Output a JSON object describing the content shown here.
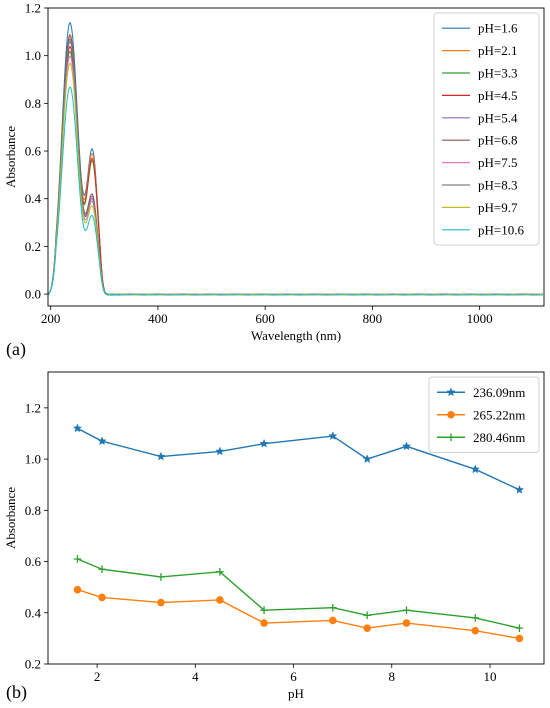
{
  "chart_data": [
    {
      "panel_label": "(a)",
      "type": "line",
      "xlabel": "Wavelength (nm)",
      "ylabel": "Absorbance",
      "xlim": [
        195,
        1120
      ],
      "ylim": [
        -0.05,
        1.2
      ],
      "xticks": [
        200,
        400,
        600,
        800,
        1000
      ],
      "yticks": [
        0.0,
        0.2,
        0.4,
        0.6,
        0.8,
        1.0,
        1.2
      ],
      "xtick_labels": [
        "200",
        "400",
        "600",
        "800",
        "1000"
      ],
      "ytick_labels": [
        "0.0",
        "0.2",
        "0.4",
        "0.6",
        "0.8",
        "1.0",
        "1.2"
      ],
      "grid": false,
      "legend": "top-right",
      "series": [
        {
          "name": "pH=1.6",
          "color": "#1f77b4",
          "peak": 1.14,
          "shoulder": 0.61
        },
        {
          "name": "pH=2.1",
          "color": "#ff7f0e",
          "peak": 1.08,
          "shoulder": 0.59
        },
        {
          "name": "pH=3.3",
          "color": "#2ca02c",
          "peak": 1.02,
          "shoulder": 0.56
        },
        {
          "name": "pH=4.5",
          "color": "#d62728",
          "peak": 1.04,
          "shoulder": 0.57
        },
        {
          "name": "pH=5.4",
          "color": "#9467bd",
          "peak": 1.07,
          "shoulder": 0.41
        },
        {
          "name": "pH=6.8",
          "color": "#8c564b",
          "peak": 1.09,
          "shoulder": 0.42
        },
        {
          "name": "pH=7.5",
          "color": "#e377c2",
          "peak": 1.0,
          "shoulder": 0.39
        },
        {
          "name": "pH=8.3",
          "color": "#7f7f7f",
          "peak": 1.06,
          "shoulder": 0.4
        },
        {
          "name": "pH=9.7",
          "color": "#bcbd22",
          "peak": 0.97,
          "shoulder": 0.37
        },
        {
          "name": "pH=10.6",
          "color": "#17becf",
          "peak": 0.87,
          "shoulder": 0.33
        }
      ]
    },
    {
      "panel_label": "(b)",
      "type": "line",
      "xlabel": "pH",
      "ylabel": "Absorbance",
      "xlim": [
        1.0,
        11.1
      ],
      "ylim": [
        0.2,
        1.34
      ],
      "xticks": [
        2,
        4,
        6,
        8,
        10
      ],
      "yticks": [
        0.2,
        0.4,
        0.6,
        0.8,
        1.0,
        1.2
      ],
      "xtick_labels": [
        "2",
        "4",
        "6",
        "8",
        "10"
      ],
      "ytick_labels": [
        "0.2",
        "0.4",
        "0.6",
        "0.8",
        "1.0",
        "1.2"
      ],
      "grid": false,
      "legend": "top-right",
      "x": [
        1.6,
        2.1,
        3.3,
        4.5,
        5.4,
        6.8,
        7.5,
        8.3,
        9.7,
        10.6
      ],
      "series": [
        {
          "name": "236.09nm",
          "color": "#1f77b4",
          "marker": "star",
          "values": [
            1.12,
            1.07,
            1.01,
            1.03,
            1.06,
            1.09,
            1.0,
            1.05,
            0.96,
            0.88
          ]
        },
        {
          "name": "265.22nm",
          "color": "#ff7f0e",
          "marker": "circle",
          "values": [
            0.49,
            0.46,
            0.44,
            0.45,
            0.36,
            0.37,
            0.34,
            0.36,
            0.33,
            0.3
          ]
        },
        {
          "name": "280.46nm",
          "color": "#2ca02c",
          "marker": "plus",
          "values": [
            0.61,
            0.57,
            0.54,
            0.56,
            0.41,
            0.42,
            0.39,
            0.41,
            0.38,
            0.34
          ]
        }
      ]
    }
  ]
}
